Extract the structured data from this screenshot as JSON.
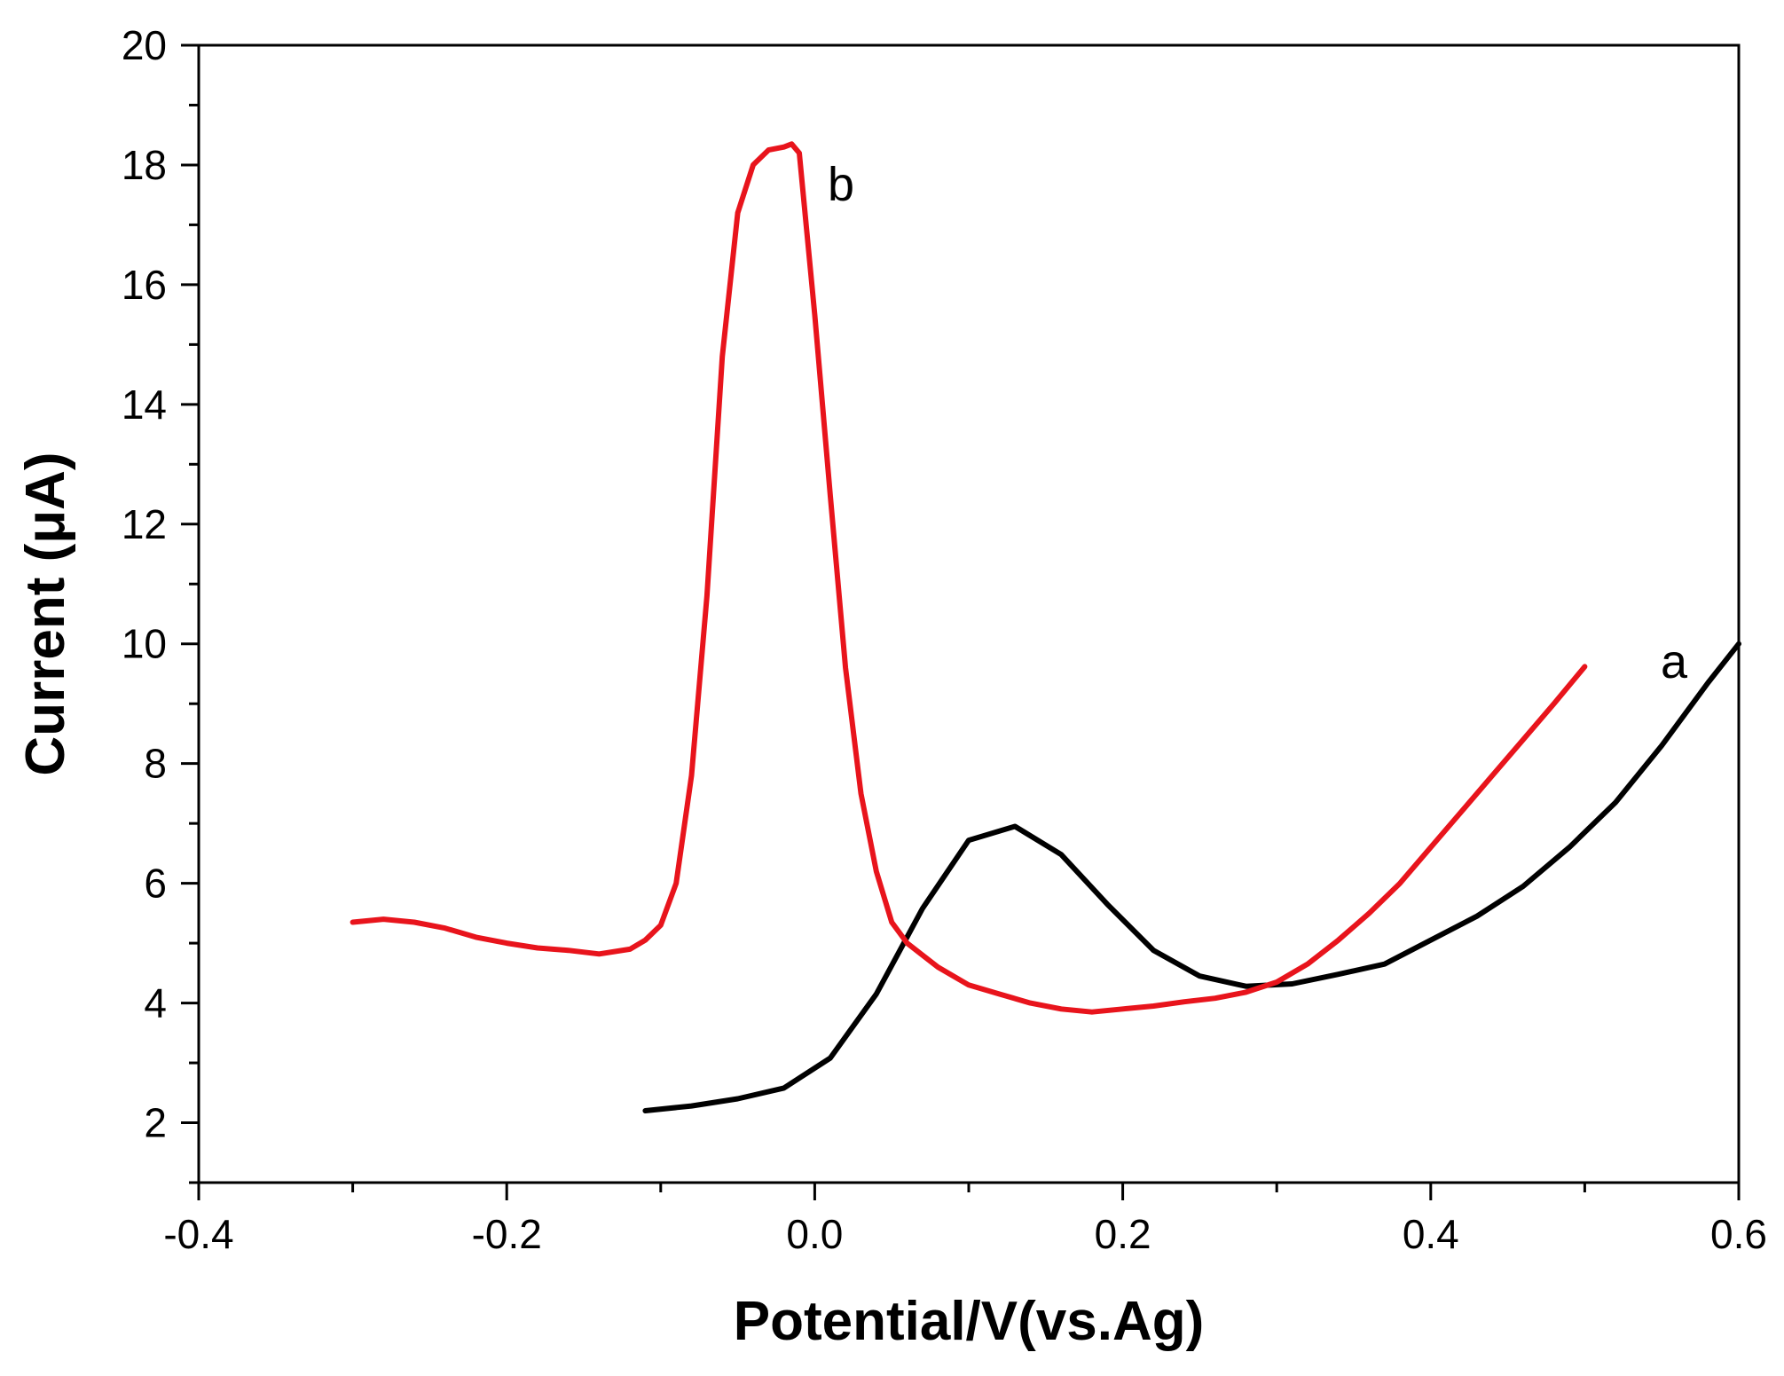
{
  "chart_data": {
    "type": "line",
    "title": "",
    "xlabel": "Potential/V(vs.Ag)",
    "ylabel": "Current (μA)",
    "xlim": [
      -0.4,
      0.6
    ],
    "ylim": [
      1,
      20
    ],
    "xticks": [
      -0.4,
      -0.2,
      0.0,
      0.2,
      0.4,
      0.6
    ],
    "xtick_labels": [
      "-0.4",
      "-0.2",
      "0.0",
      "0.2",
      "0.4",
      "0.6"
    ],
    "yticks": [
      2,
      4,
      6,
      8,
      10,
      12,
      14,
      16,
      18,
      20
    ],
    "ytick_labels": [
      "2",
      "4",
      "6",
      "8",
      "10",
      "12",
      "14",
      "16",
      "18",
      "20"
    ],
    "grid": false,
    "series": [
      {
        "name": "a",
        "color": "#000000",
        "x": [
          -0.11,
          -0.08,
          -0.05,
          -0.02,
          0.01,
          0.04,
          0.07,
          0.1,
          0.13,
          0.16,
          0.19,
          0.22,
          0.25,
          0.28,
          0.31,
          0.34,
          0.37,
          0.4,
          0.43,
          0.46,
          0.49,
          0.52,
          0.55,
          0.58,
          0.6
        ],
        "y": [
          2.2,
          2.28,
          2.4,
          2.58,
          3.08,
          4.15,
          5.58,
          6.72,
          6.95,
          6.48,
          5.65,
          4.88,
          4.45,
          4.28,
          4.32,
          4.48,
          4.65,
          5.05,
          5.45,
          5.95,
          6.6,
          7.35,
          8.3,
          9.35,
          10.0
        ]
      },
      {
        "name": "b",
        "color": "#e8141c",
        "x": [
          -0.3,
          -0.28,
          -0.26,
          -0.24,
          -0.22,
          -0.2,
          -0.18,
          -0.16,
          -0.14,
          -0.12,
          -0.11,
          -0.1,
          -0.09,
          -0.08,
          -0.07,
          -0.06,
          -0.05,
          -0.04,
          -0.03,
          -0.02,
          -0.015,
          -0.01,
          0.0,
          0.01,
          0.02,
          0.03,
          0.04,
          0.05,
          0.06,
          0.07,
          0.08,
          0.1,
          0.12,
          0.14,
          0.16,
          0.18,
          0.2,
          0.22,
          0.24,
          0.26,
          0.28,
          0.3,
          0.32,
          0.34,
          0.36,
          0.38,
          0.4,
          0.42,
          0.44,
          0.46,
          0.48,
          0.5
        ],
        "y": [
          5.35,
          5.4,
          5.35,
          5.25,
          5.1,
          5.0,
          4.92,
          4.88,
          4.82,
          4.9,
          5.05,
          5.3,
          6.0,
          7.8,
          10.8,
          14.8,
          17.2,
          18.0,
          18.25,
          18.3,
          18.35,
          18.2,
          15.5,
          12.5,
          9.6,
          7.5,
          6.2,
          5.35,
          5.0,
          4.8,
          4.6,
          4.3,
          4.15,
          4.0,
          3.9,
          3.85,
          3.9,
          3.95,
          4.02,
          4.08,
          4.18,
          4.35,
          4.65,
          5.05,
          5.5,
          6.0,
          6.6,
          7.2,
          7.8,
          8.4,
          9.0,
          9.62
        ]
      }
    ]
  }
}
